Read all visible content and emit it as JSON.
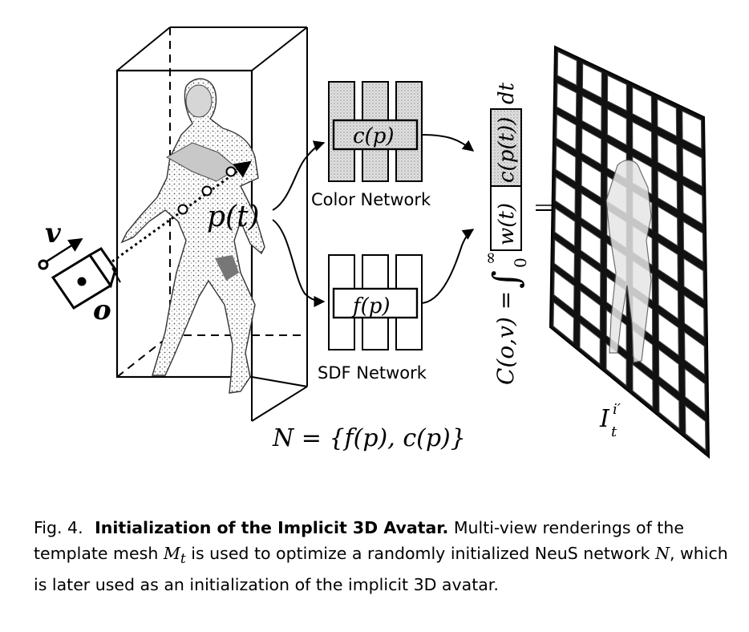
{
  "diagram": {
    "labels": {
      "view_dir": "v",
      "origin": "o",
      "ray_point": "p(t)",
      "color_fn": "c(p)",
      "color_network": "Color Network",
      "sdf_fn": "f(p)",
      "sdf_network": "SDF Network",
      "network_set": "N = {f(p), c(p)}",
      "render_lhs": "C(o,v) =",
      "integral_upper": "∞",
      "integral_lower": "0",
      "weight_term": "w(t)",
      "color_term": "c(p(t))",
      "dt": "dt",
      "image_label_base": "I",
      "image_label_sup": "i′",
      "image_label_sub": "t"
    }
  },
  "caption": {
    "number": "Fig. 4.",
    "title": "Initialization of the Implicit 3D Avatar.",
    "text1": "Multi-view renderings of the template mesh",
    "mesh_symbol": "M",
    "mesh_sub": "t",
    "text2": "is used to optimize a randomly initialized NeuS network",
    "network_symbol": "N",
    "text3": ", which is later used as an initialization of the implicit 3D avatar."
  }
}
